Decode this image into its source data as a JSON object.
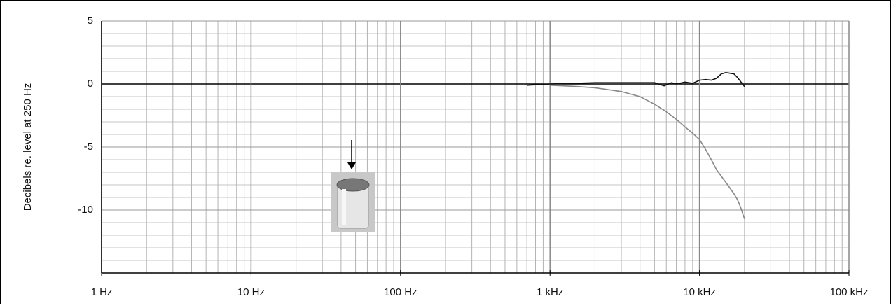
{
  "chart_data": {
    "type": "line",
    "y_label": "Decibels re. level at 250 Hz",
    "xscale": "log",
    "xlim": [
      1,
      100000
    ],
    "xticks": [
      {
        "value": 1,
        "label": "1 Hz"
      },
      {
        "value": 10,
        "label": "10 Hz"
      },
      {
        "value": 100,
        "label": "100 Hz"
      },
      {
        "value": 1000,
        "label": "1 kHz"
      },
      {
        "value": 10000,
        "label": "10 kHz"
      },
      {
        "value": 100000,
        "label": "100 kHz"
      }
    ],
    "xminor_ticks": [
      2,
      3,
      4,
      5,
      6,
      7,
      8,
      9,
      20,
      30,
      40,
      50,
      60,
      70,
      80,
      90,
      200,
      300,
      400,
      500,
      600,
      700,
      800,
      900,
      2000,
      3000,
      4000,
      5000,
      6000,
      7000,
      8000,
      9000,
      20000,
      30000,
      40000,
      50000,
      60000,
      70000,
      80000,
      90000
    ],
    "ylim": [
      -15,
      5
    ],
    "yticks": [
      5,
      0,
      -5,
      -10
    ],
    "yminor_ticks": [
      4,
      3,
      2,
      1,
      -1,
      -2,
      -3,
      -4,
      -6,
      -7,
      -8,
      -9,
      -11,
      -12,
      -13,
      -14
    ],
    "grid": true,
    "series": [
      {
        "color": "#111111",
        "x": [
          700,
          1000,
          1500,
          2000,
          3000,
          4000,
          5000,
          5800,
          6500,
          7000,
          8000,
          9000,
          10000,
          11000,
          12000,
          13000,
          14000,
          15000,
          16000,
          17000,
          18000,
          20000
        ],
        "values": [
          -0.1,
          0.0,
          0.05,
          0.1,
          0.1,
          0.1,
          0.1,
          -0.15,
          0.1,
          0.0,
          0.15,
          0.05,
          0.3,
          0.35,
          0.3,
          0.45,
          0.8,
          0.9,
          0.85,
          0.8,
          0.5,
          -0.2
        ]
      },
      {
        "color": "#888888",
        "x": [
          1000,
          1500,
          2000,
          3000,
          4000,
          5000,
          6000,
          7000,
          8000,
          9000,
          10000,
          11000,
          12000,
          13000,
          15000,
          17000,
          18000,
          19000,
          20000
        ],
        "values": [
          -0.1,
          -0.2,
          -0.3,
          -0.6,
          -1.0,
          -1.6,
          -2.2,
          -2.8,
          -3.4,
          -3.9,
          -4.4,
          -5.2,
          -6.0,
          -6.8,
          -7.8,
          -8.7,
          -9.2,
          -9.9,
          -10.7
        ]
      }
    ]
  }
}
